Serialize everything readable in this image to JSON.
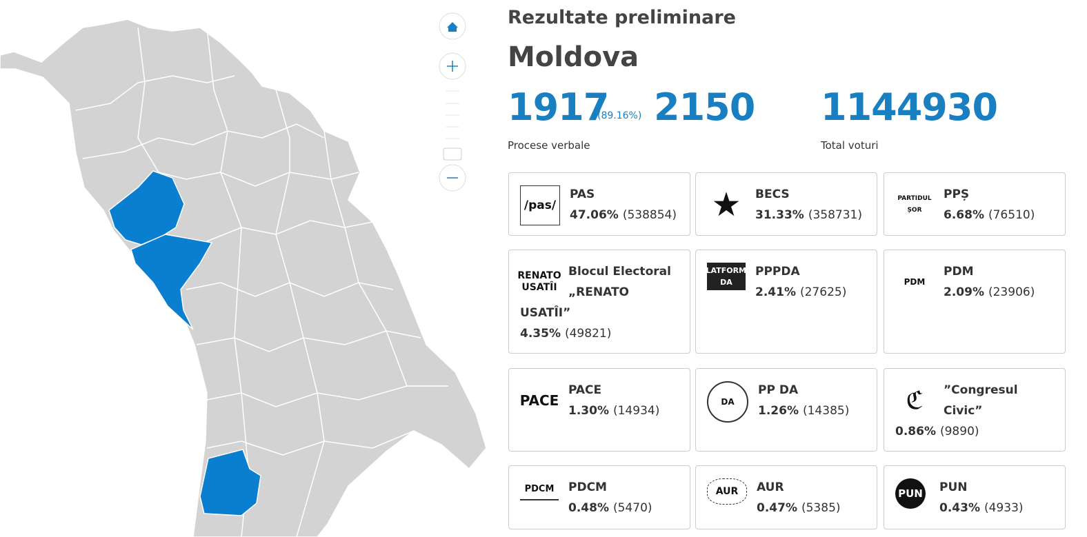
{
  "header": {
    "title": "Rezultate preliminare",
    "region": "Moldova"
  },
  "stats": {
    "processed": "1917",
    "processed_percent": "(89.16%)",
    "total_stations": "2150",
    "processed_label": "Procese verbale",
    "total_votes": "1144930",
    "total_votes_label": "Total voturi"
  },
  "parties": [
    {
      "logo": "/pas/",
      "name": "PAS",
      "percent": "47.06%",
      "votes": "(538854)"
    },
    {
      "logo": "★",
      "name": "BECS",
      "percent": "31.33%",
      "votes": "(358731)"
    },
    {
      "logo": "PARTIDUL ȘOR",
      "name": "PPȘ",
      "percent": "6.68%",
      "votes": "(76510)"
    },
    {
      "logo": "RENATO USATÎI",
      "name": "Blocul Electoral „RENATO USATÎI”",
      "percent": "4.35%",
      "votes": "(49821)"
    },
    {
      "logo": "PLATFORMA DA",
      "name": "PPPDA",
      "percent": "2.41%",
      "votes": "(27625)"
    },
    {
      "logo": "PDM",
      "name": "PDM",
      "percent": "2.09%",
      "votes": "(23906)"
    },
    {
      "logo": "PACE",
      "name": "PACE",
      "percent": "1.30%",
      "votes": "(14934)"
    },
    {
      "logo": "DA",
      "name": "PP DA",
      "percent": "1.26%",
      "votes": "(14385)"
    },
    {
      "logo": "ℭ",
      "name": "”Congresul Civic”",
      "percent": "0.86%",
      "votes": "(9890)"
    },
    {
      "logo": "PDCM",
      "name": "PDCM",
      "percent": "0.48%",
      "votes": "(5470)"
    },
    {
      "logo": "AUR",
      "name": "AUR",
      "percent": "0.47%",
      "votes": "(5385)"
    },
    {
      "logo": "PUN",
      "name": "PUN",
      "percent": "0.43%",
      "votes": "(4933)"
    }
  ]
}
